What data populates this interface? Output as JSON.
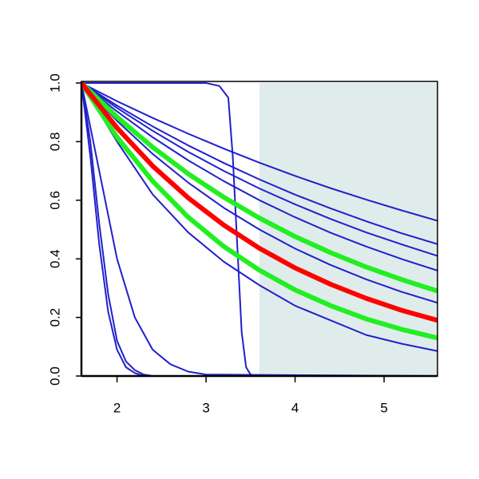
{
  "chart_data": {
    "type": "line",
    "xlim": [
      1.6,
      5.6
    ],
    "ylim": [
      0,
      1
    ],
    "xticks": [
      2,
      3,
      4,
      5
    ],
    "yticks": [
      {
        "value": 0,
        "label": "0.0"
      },
      {
        "value": 0.2,
        "label": "0.2"
      },
      {
        "value": 0.4,
        "label": "0.4"
      },
      {
        "value": 0.6,
        "label": "0.6"
      },
      {
        "value": 0.8,
        "label": "0.8"
      },
      {
        "value": 1,
        "label": "1.0"
      }
    ],
    "shaded_xrange": [
      3.6,
      5.6
    ],
    "shade_color": "#dfeceb",
    "x": [
      1.6,
      2.0,
      2.4,
      2.8,
      3.2,
      3.6,
      4.0,
      4.4,
      4.8,
      5.2,
      5.6
    ],
    "series": [
      {
        "color": "#2020cc",
        "values": [
          1,
          0.938,
          0.881,
          0.827,
          0.776,
          0.728,
          0.683,
          0.641,
          0.602,
          0.565,
          0.53
        ]
      },
      {
        "color": "#2020cc",
        "values": [
          1,
          0.923,
          0.852,
          0.787,
          0.727,
          0.671,
          0.619,
          0.572,
          0.528,
          0.487,
          0.45
        ]
      },
      {
        "color": "#2020cc",
        "values": [
          1,
          0.915,
          0.837,
          0.765,
          0.7,
          0.64,
          0.586,
          0.536,
          0.49,
          0.449,
          0.41
        ]
      },
      {
        "color": "#2020cc",
        "values": [
          1,
          0.903,
          0.815,
          0.736,
          0.665,
          0.6,
          0.542,
          0.489,
          0.442,
          0.399,
          0.36
        ]
      },
      {
        "color": "#2020cc",
        "values": [
          1,
          0.871,
          0.758,
          0.66,
          0.574,
          0.5,
          0.435,
          0.379,
          0.33,
          0.287,
          0.25
        ]
      },
      {
        "color": "#2020cc",
        "values": [
          1,
          0.8,
          0.62,
          0.49,
          0.39,
          0.31,
          0.24,
          0.19,
          0.14,
          0.11,
          0.085
        ]
      },
      {
        "color": "#2020cc",
        "x": [
          1.6,
          1.7,
          1.8,
          1.9,
          2.0,
          2.1,
          2.2,
          2.3,
          2.4,
          5.6
        ],
        "values": [
          1,
          0.75,
          0.45,
          0.22,
          0.09,
          0.03,
          0.01,
          0,
          0,
          0
        ]
      },
      {
        "color": "#2020cc",
        "x": [
          1.6,
          1.7,
          1.8,
          1.9,
          2.0,
          2.1,
          2.2,
          2.3,
          2.4,
          5.6
        ],
        "values": [
          1,
          0.8,
          0.52,
          0.28,
          0.12,
          0.05,
          0.02,
          0.005,
          0,
          0
        ]
      },
      {
        "color": "#2020cc",
        "x": [
          1.6,
          1.8,
          2.0,
          2.2,
          2.4,
          2.6,
          2.8,
          3.0,
          5.6
        ],
        "values": [
          1,
          0.7,
          0.4,
          0.2,
          0.09,
          0.04,
          0.015,
          0.005,
          0
        ]
      },
      {
        "color": "#2020cc",
        "x": [
          1.6,
          3.0,
          3.15,
          3.25,
          3.3,
          3.35,
          3.4,
          3.45,
          3.5,
          3.6,
          5.6
        ],
        "values": [
          1,
          1,
          0.99,
          0.95,
          0.75,
          0.45,
          0.15,
          0.03,
          0.005,
          0,
          0
        ]
      },
      {
        "color": "#22ee22",
        "values": [
          1,
          0.884,
          0.781,
          0.69,
          0.61,
          0.539,
          0.476,
          0.421,
          0.372,
          0.329,
          0.29
        ]
      },
      {
        "color": "#22ee22",
        "values": [
          1,
          0.815,
          0.665,
          0.542,
          0.442,
          0.361,
          0.294,
          0.24,
          0.195,
          0.159,
          0.13
        ]
      },
      {
        "color": "#ff0000",
        "values": [
          1,
          0.847,
          0.717,
          0.608,
          0.515,
          0.436,
          0.369,
          0.313,
          0.265,
          0.224,
          0.19
        ]
      }
    ]
  }
}
